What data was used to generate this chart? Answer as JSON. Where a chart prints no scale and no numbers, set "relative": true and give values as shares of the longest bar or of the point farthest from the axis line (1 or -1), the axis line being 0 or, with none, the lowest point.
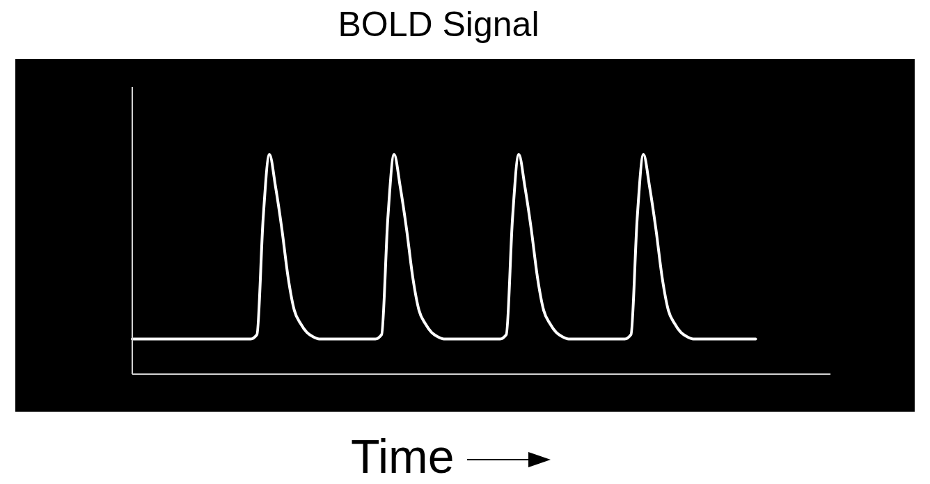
{
  "chart_data": {
    "type": "line",
    "title": "BOLD Signal",
    "xlabel": "Time",
    "relative": true,
    "marker": "none",
    "line_style": "solid",
    "categories": [
      null,
      null,
      null,
      null,
      null,
      null,
      null,
      null,
      null,
      null,
      null,
      null,
      null,
      null,
      null,
      null,
      null,
      null,
      null,
      null,
      null,
      null,
      null,
      null,
      null,
      null,
      null,
      null,
      null,
      null,
      null,
      null,
      null,
      null,
      null,
      null,
      null,
      null,
      null,
      null,
      null,
      null,
      null,
      null,
      null,
      null,
      null,
      null,
      null,
      null,
      null,
      null,
      null,
      null,
      null,
      null,
      null,
      null,
      null,
      null,
      null,
      null,
      null,
      null,
      null,
      null,
      null,
      null,
      null,
      null,
      null,
      null,
      null,
      null,
      null,
      null,
      null,
      null,
      null,
      null,
      null,
      null,
      null,
      null,
      null,
      null,
      null,
      null,
      null,
      null,
      null,
      null,
      null,
      null,
      null,
      null,
      null,
      null,
      null,
      null,
      null,
      null,
      null,
      null,
      null,
      null,
      null,
      null,
      null,
      null,
      null,
      null,
      null
    ],
    "series": [
      {
        "color": "#ffffff",
        "values": [
          0.16,
          0.16,
          0.16,
          0.16,
          0.16,
          0.16,
          0.16,
          0.16,
          0.16,
          0.16,
          0.16,
          0.16,
          0.16,
          0.16,
          0.16,
          0.16,
          0.16,
          0.16,
          0.16,
          0.16,
          0.18,
          0.71,
          1,
          0.85,
          0.66,
          0.44,
          0.29,
          0.23,
          0.19,
          0.17,
          0.16,
          0.16,
          0.16,
          0.16,
          0.16,
          0.16,
          0.16,
          0.16,
          0.16,
          0.16,
          0.18,
          0.71,
          1,
          0.85,
          0.66,
          0.44,
          0.29,
          0.23,
          0.19,
          0.17,
          0.16,
          0.16,
          0.16,
          0.16,
          0.16,
          0.16,
          0.16,
          0.16,
          0.16,
          0.16,
          0.18,
          0.71,
          1,
          0.85,
          0.66,
          0.44,
          0.29,
          0.23,
          0.19,
          0.17,
          0.16,
          0.16,
          0.16,
          0.16,
          0.16,
          0.16,
          0.16,
          0.16,
          0.16,
          0.16,
          0.18,
          0.71,
          1,
          0.85,
          0.66,
          0.44,
          0.29,
          0.23,
          0.19,
          0.17,
          0.16,
          0.16,
          0.16,
          0.16,
          0.16,
          0.16,
          0.16,
          0.16,
          0.16,
          0.16,
          0.16,
          null,
          null,
          null,
          null,
          null,
          null,
          null,
          null,
          null,
          null,
          null,
          null
        ]
      }
    ]
  }
}
